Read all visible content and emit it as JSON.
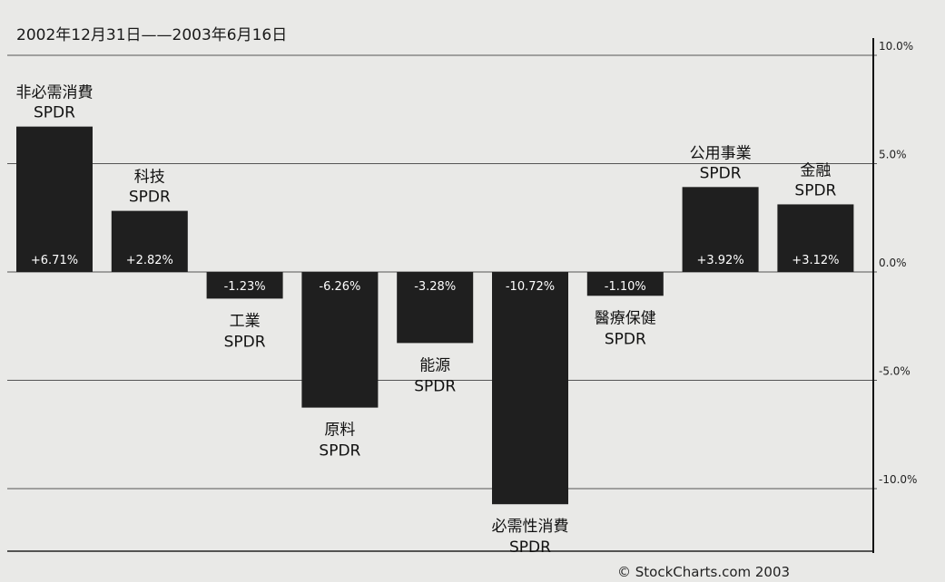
{
  "chart_data": {
    "type": "bar",
    "subtitle": "2002年12月31日——2003年6月16日",
    "ylim": [
      -12.5,
      12.5
    ],
    "y_ticks": [
      10,
      5,
      0,
      -5,
      -10
    ],
    "y_tick_labels": [
      "10.0%",
      "5.0%",
      "0.0%",
      "-5.0%",
      "-10.0%"
    ],
    "y_axis_side": "right",
    "grid": true,
    "categories": [
      {
        "line1": "非必需消費",
        "line2": "SPDR"
      },
      {
        "line1": "科技",
        "line2": "SPDR"
      },
      {
        "line1": "工業",
        "line2": "SPDR"
      },
      {
        "line1": "原料",
        "line2": "SPDR"
      },
      {
        "line1": "能源",
        "line2": "SPDR"
      },
      {
        "line1": "必需性消費",
        "line2": "SPDR"
      },
      {
        "line1": "醫療保健",
        "line2": "SPDR"
      },
      {
        "line1": "公用事業",
        "line2": "SPDR"
      },
      {
        "line1": "金融",
        "line2": "SPDR"
      }
    ],
    "values": [
      6.71,
      2.82,
      -1.23,
      -6.26,
      -3.28,
      -10.72,
      -1.1,
      3.92,
      3.12
    ],
    "value_labels": [
      "+6.71%",
      "+2.82%",
      "-1.23%",
      "-6.26%",
      "-3.28%",
      "-10.72%",
      "-1.10%",
      "+3.92%",
      "+3.12%"
    ],
    "bar_color": "#1f1f1f",
    "credit": "© StockCharts.com 2003"
  }
}
